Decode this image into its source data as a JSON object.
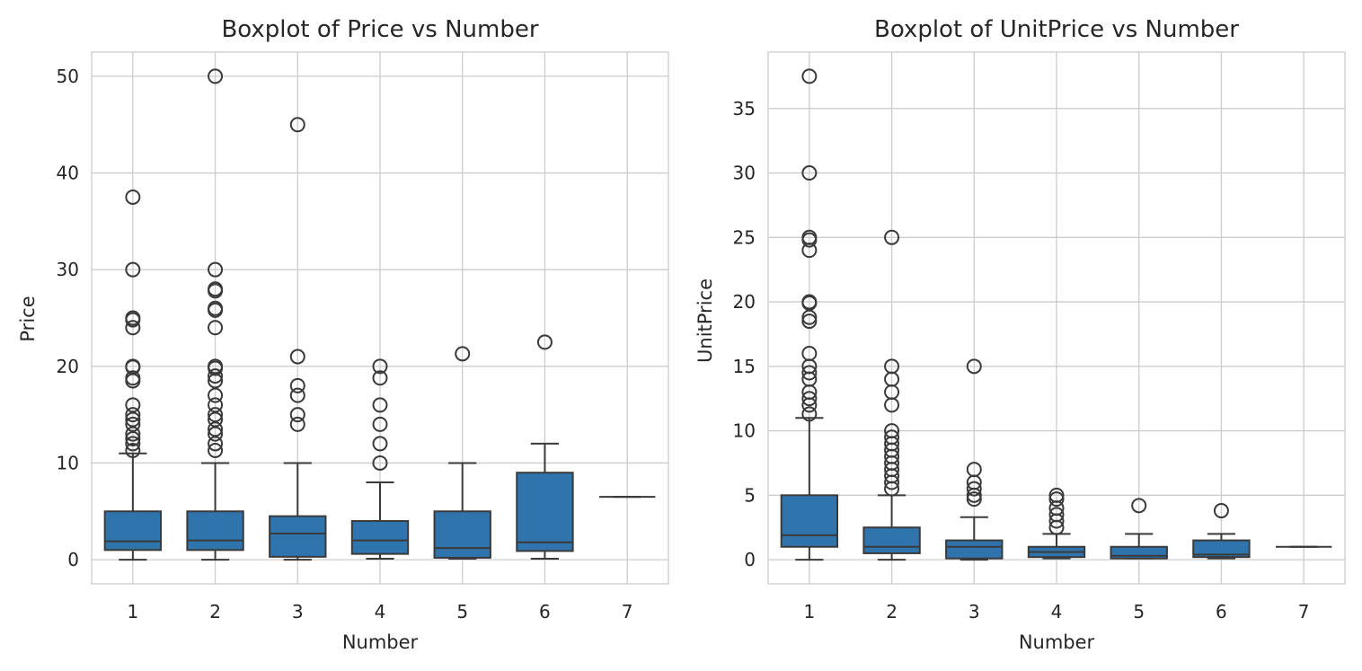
{
  "colors": {
    "box_fill": "#2f74ad",
    "box_edge": "#3a3a3a",
    "grid": "#cccccc",
    "frame": "#cccccc",
    "text": "#262626"
  },
  "chart_data": [
    {
      "type": "box",
      "title": "Boxplot of Price vs Number",
      "xlabel": "Number",
      "ylabel": "Price",
      "ylim": [
        -2.5,
        52.5
      ],
      "yticks": [
        0,
        10,
        20,
        30,
        40,
        50
      ],
      "grid": true,
      "categories": [
        "1",
        "2",
        "3",
        "4",
        "5",
        "6",
        "7"
      ],
      "boxes": [
        {
          "category": "1",
          "whisker_low": 0,
          "q1": 1,
          "median": 1.9,
          "q3": 5,
          "whisker_high": 11,
          "outliers": [
            11.3,
            12,
            12.5,
            13,
            14,
            14.5,
            15,
            16,
            18.5,
            18.8,
            19.9,
            20,
            24,
            24.8,
            25,
            30,
            37.5
          ]
        },
        {
          "category": "2",
          "whisker_low": 0,
          "q1": 1,
          "median": 2,
          "q3": 5,
          "whisker_high": 10,
          "outliers": [
            11.3,
            12,
            13,
            13.5,
            14.5,
            15,
            16,
            17,
            18.5,
            19,
            19.8,
            20,
            24,
            25.8,
            26,
            27.8,
            28,
            30,
            50
          ]
        },
        {
          "category": "3",
          "whisker_low": 0,
          "q1": 0.3,
          "median": 2.7,
          "q3": 4.5,
          "whisker_high": 10,
          "outliers": [
            14,
            15,
            17,
            18,
            21,
            45
          ]
        },
        {
          "category": "4",
          "whisker_low": 0.1,
          "q1": 0.6,
          "median": 2,
          "q3": 4,
          "whisker_high": 8,
          "outliers": [
            10,
            12,
            14,
            16,
            18.8,
            20
          ]
        },
        {
          "category": "5",
          "whisker_low": 0.1,
          "q1": 0.2,
          "median": 1.2,
          "q3": 5,
          "whisker_high": 10,
          "outliers": [
            21.3
          ]
        },
        {
          "category": "6",
          "whisker_low": 0.1,
          "q1": 0.9,
          "median": 1.8,
          "q3": 9,
          "whisker_high": 12,
          "outliers": [
            22.5
          ]
        },
        {
          "category": "7",
          "whisker_low": 6.5,
          "q1": 6.5,
          "median": 6.5,
          "q3": 6.5,
          "whisker_high": 6.5,
          "outliers": []
        }
      ]
    },
    {
      "type": "box",
      "title": "Boxplot of UnitPrice vs Number",
      "xlabel": "Number",
      "ylabel": "UnitPrice",
      "ylim": [
        -1.875,
        39.375
      ],
      "yticks": [
        0,
        5,
        10,
        15,
        20,
        25,
        30,
        35
      ],
      "grid": true,
      "categories": [
        "1",
        "2",
        "3",
        "4",
        "5",
        "6",
        "7"
      ],
      "boxes": [
        {
          "category": "1",
          "whisker_low": 0,
          "q1": 1,
          "median": 1.9,
          "q3": 5,
          "whisker_high": 11,
          "outliers": [
            11.3,
            12,
            12.5,
            13,
            14,
            14.5,
            15,
            16,
            18.5,
            18.8,
            19.9,
            20,
            24,
            24.8,
            25,
            30,
            37.5
          ]
        },
        {
          "category": "2",
          "whisker_low": 0,
          "q1": 0.5,
          "median": 1,
          "q3": 2.5,
          "whisker_high": 5,
          "outliers": [
            5.5,
            6,
            6.5,
            7,
            7.5,
            8,
            8.5,
            9,
            9.5,
            10,
            12,
            13,
            14,
            15,
            25
          ]
        },
        {
          "category": "3",
          "whisker_low": 0,
          "q1": 0.1,
          "median": 1,
          "q3": 1.5,
          "whisker_high": 3.3,
          "outliers": [
            4.7,
            5,
            5.5,
            6,
            7,
            15
          ]
        },
        {
          "category": "4",
          "whisker_low": 0.1,
          "q1": 0.2,
          "median": 0.6,
          "q3": 1,
          "whisker_high": 2,
          "outliers": [
            2.5,
            3,
            3.5,
            4,
            4.7,
            5
          ]
        },
        {
          "category": "5",
          "whisker_low": 0.1,
          "q1": 0.1,
          "median": 0.3,
          "q3": 1,
          "whisker_high": 2,
          "outliers": [
            4.2
          ]
        },
        {
          "category": "6",
          "whisker_low": 0.1,
          "q1": 0.2,
          "median": 0.4,
          "q3": 1.5,
          "whisker_high": 2,
          "outliers": [
            3.8
          ]
        },
        {
          "category": "7",
          "whisker_low": 1,
          "q1": 1,
          "median": 1,
          "q3": 1,
          "whisker_high": 1,
          "outliers": []
        }
      ]
    }
  ]
}
